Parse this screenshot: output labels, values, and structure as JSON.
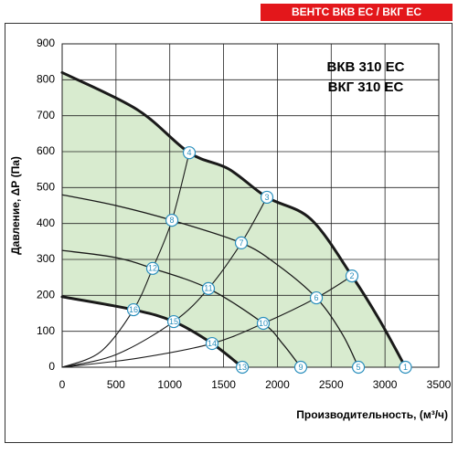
{
  "header": "ВЕНТС ВКВ ЕС / ВКГ ЕС",
  "chart_data": {
    "type": "line",
    "title": "ВКВ 310 ЕС",
    "subtitle": "ВКГ 310 ЕС",
    "x_label": "Производительность, (м³/ч)",
    "y_label": "Давление, ΔР (Па)",
    "xlim": [
      0,
      3500
    ],
    "ylim": [
      0,
      900
    ],
    "xticks": [
      0,
      500,
      1000,
      1500,
      2000,
      2500,
      3000,
      3500
    ],
    "yticks": [
      0,
      100,
      200,
      300,
      400,
      500,
      600,
      700,
      800,
      900
    ],
    "grid": true,
    "area_color": "#d8ebcf",
    "series": [
      {
        "color": "#1a1a1a",
        "line_width": 3,
        "x": [
          0,
          697,
          1181,
          1546,
          1903,
          2311,
          2693,
          2948,
          3190
        ],
        "values": [
          820,
          717,
          597,
          552,
          473,
          412,
          254,
          132,
          0
        ]
      },
      {
        "color": "#1a1a1a",
        "line_width": 1.3,
        "x": [
          0,
          500,
          1020,
          1665,
          2000,
          2362,
          2600,
          2753
        ],
        "values": [
          480,
          450,
          409,
          346,
          285,
          193,
          94,
          0
        ]
      },
      {
        "color": "#1a1a1a",
        "line_width": 1.3,
        "x": [
          0,
          500,
          841,
          1359,
          1869,
          2050,
          2217
        ],
        "values": [
          325,
          305,
          275,
          219,
          122,
          65,
          0
        ]
      },
      {
        "color": "#1a1a1a",
        "line_width": 3,
        "x": [
          0,
          663,
          1037,
          1393,
          1674
        ],
        "values": [
          196,
          160,
          127,
          66,
          0
        ]
      },
      {
        "color": "#1a1a1a",
        "line_width": 1.1,
        "x": [
          0,
          357,
          663,
          841,
          1020,
          1181
        ],
        "values": [
          0,
          43,
          160,
          275,
          409,
          597
        ]
      },
      {
        "color": "#1a1a1a",
        "line_width": 1.1,
        "x": [
          0,
          500,
          1037,
          1359,
          1665,
          1903
        ],
        "values": [
          0,
          35,
          127,
          219,
          346,
          473
        ]
      },
      {
        "color": "#1a1a1a",
        "line_width": 1.1,
        "x": [
          0,
          700,
          1393,
          1869,
          2362,
          2693
        ],
        "values": [
          0,
          25,
          66,
          122,
          193,
          254
        ]
      }
    ],
    "marker_color": "#2a8fbd",
    "points": [
      {
        "label": "1",
        "x": 3190,
        "y": 0
      },
      {
        "label": "2",
        "x": 2693,
        "y": 254
      },
      {
        "label": "3",
        "x": 1903,
        "y": 473
      },
      {
        "label": "4",
        "x": 1181,
        "y": 597
      },
      {
        "label": "5",
        "x": 2753,
        "y": 0
      },
      {
        "label": "6",
        "x": 2362,
        "y": 193
      },
      {
        "label": "7",
        "x": 1665,
        "y": 346
      },
      {
        "label": "8",
        "x": 1020,
        "y": 409
      },
      {
        "label": "9",
        "x": 2217,
        "y": 0
      },
      {
        "label": "10",
        "x": 1869,
        "y": 122
      },
      {
        "label": "11",
        "x": 1359,
        "y": 219
      },
      {
        "label": "12",
        "x": 841,
        "y": 275
      },
      {
        "label": "13",
        "x": 1674,
        "y": 0
      },
      {
        "label": "14",
        "x": 1393,
        "y": 66
      },
      {
        "label": "15",
        "x": 1037,
        "y": 127
      },
      {
        "label": "16",
        "x": 663,
        "y": 160
      }
    ]
  }
}
